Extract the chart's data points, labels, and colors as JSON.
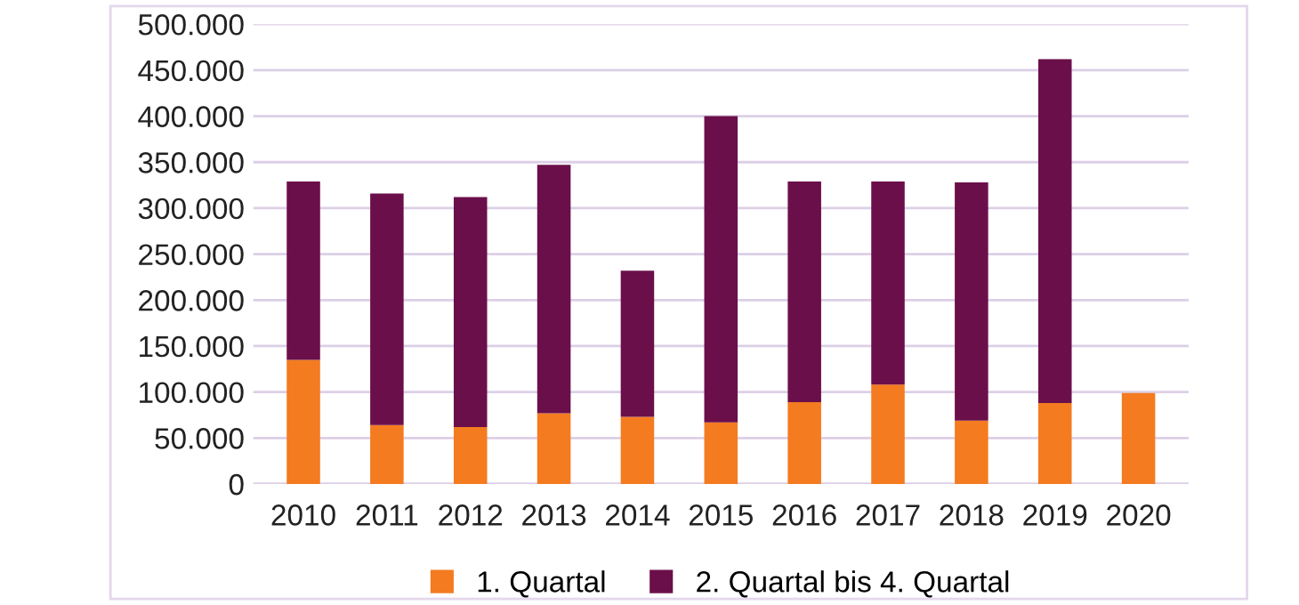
{
  "chart_data": {
    "type": "bar",
    "stacked": true,
    "categories": [
      "2010",
      "2011",
      "2012",
      "2013",
      "2014",
      "2015",
      "2016",
      "2017",
      "2018",
      "2019",
      "2020"
    ],
    "series": [
      {
        "name": "1. Quartal",
        "color": "#f47b20",
        "values": [
          135000,
          64000,
          62000,
          77000,
          73000,
          67000,
          89000,
          108000,
          69000,
          88000,
          99000
        ]
      },
      {
        "name": "2. Quartal bis 4. Quartal",
        "color": "#6b0f4a",
        "values": [
          194000,
          252000,
          250000,
          270000,
          159000,
          333000,
          240000,
          221000,
          259000,
          374000,
          null
        ]
      }
    ],
    "ylim": [
      0,
      500000
    ],
    "yticks": [
      {
        "value": 0,
        "label": "0"
      },
      {
        "value": 50000,
        "label": "50.000"
      },
      {
        "value": 100000,
        "label": "100.000"
      },
      {
        "value": 150000,
        "label": "150.000"
      },
      {
        "value": 200000,
        "label": "200.000"
      },
      {
        "value": 250000,
        "label": "250.000"
      },
      {
        "value": 300000,
        "label": "300.000"
      },
      {
        "value": 350000,
        "label": "350.000"
      },
      {
        "value": 400000,
        "label": "400.000"
      },
      {
        "value": 450000,
        "label": "450.000"
      },
      {
        "value": 500000,
        "label": "500.000"
      }
    ],
    "grid": "y",
    "legend": "bottom"
  }
}
